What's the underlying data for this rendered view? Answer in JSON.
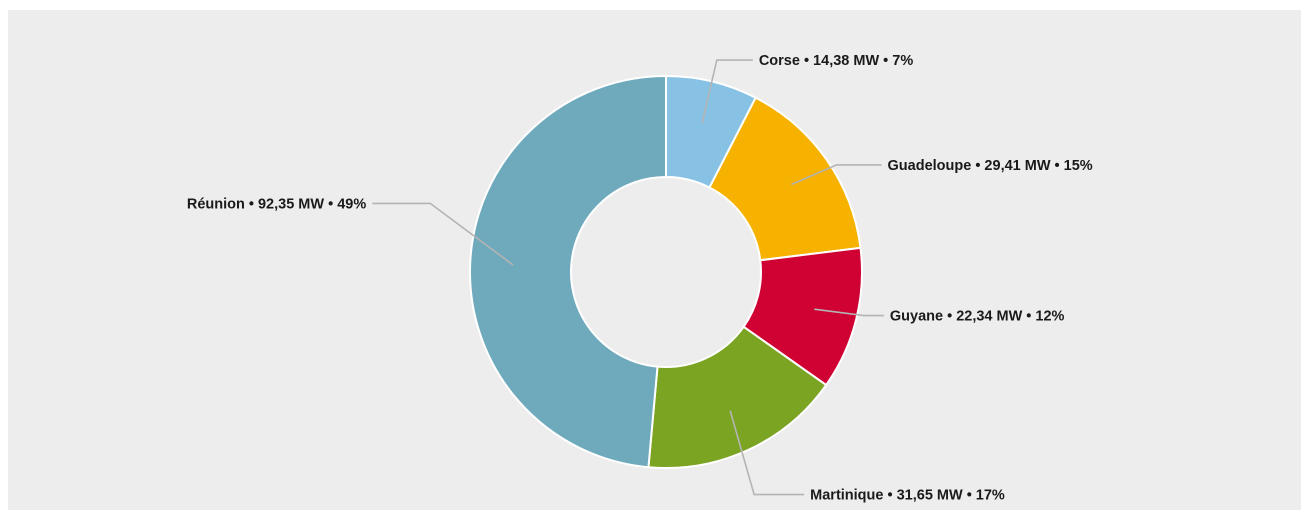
{
  "chart_data": {
    "type": "pie",
    "variant": "donut",
    "title": "",
    "slices": [
      {
        "name": "Corse",
        "value": 14.38,
        "unit": "MW",
        "percent": 7,
        "label": "Corse • 14,38 MW • 7%",
        "color": "#87c2e5"
      },
      {
        "name": "Guadeloupe",
        "value": 29.41,
        "unit": "MW",
        "percent": 15,
        "label": "Guadeloupe • 29,41 MW • 15%",
        "color": "#f7b200"
      },
      {
        "name": "Guyane",
        "value": 22.34,
        "unit": "MW",
        "percent": 12,
        "label": "Guyane • 22,34 MW • 12%",
        "color": "#cf0233"
      },
      {
        "name": "Martinique",
        "value": 31.65,
        "unit": "MW",
        "percent": 17,
        "label": "Martinique • 31,65 MW • 17%",
        "color": "#7ca423"
      },
      {
        "name": "Réunion",
        "value": 92.35,
        "unit": "MW",
        "percent": 49,
        "label": "Réunion • 92,35 MW • 49%",
        "color": "#6eaabc"
      }
    ],
    "start_angle": "12 o'clock",
    "direction": "clockwise",
    "legend": "none",
    "labels": "outside with leader lines"
  },
  "colors": {
    "background": "#ecedec",
    "slice_border": "#ffffff",
    "leader_line": "#b4b4b4",
    "label_text": "#1a1a1a"
  }
}
